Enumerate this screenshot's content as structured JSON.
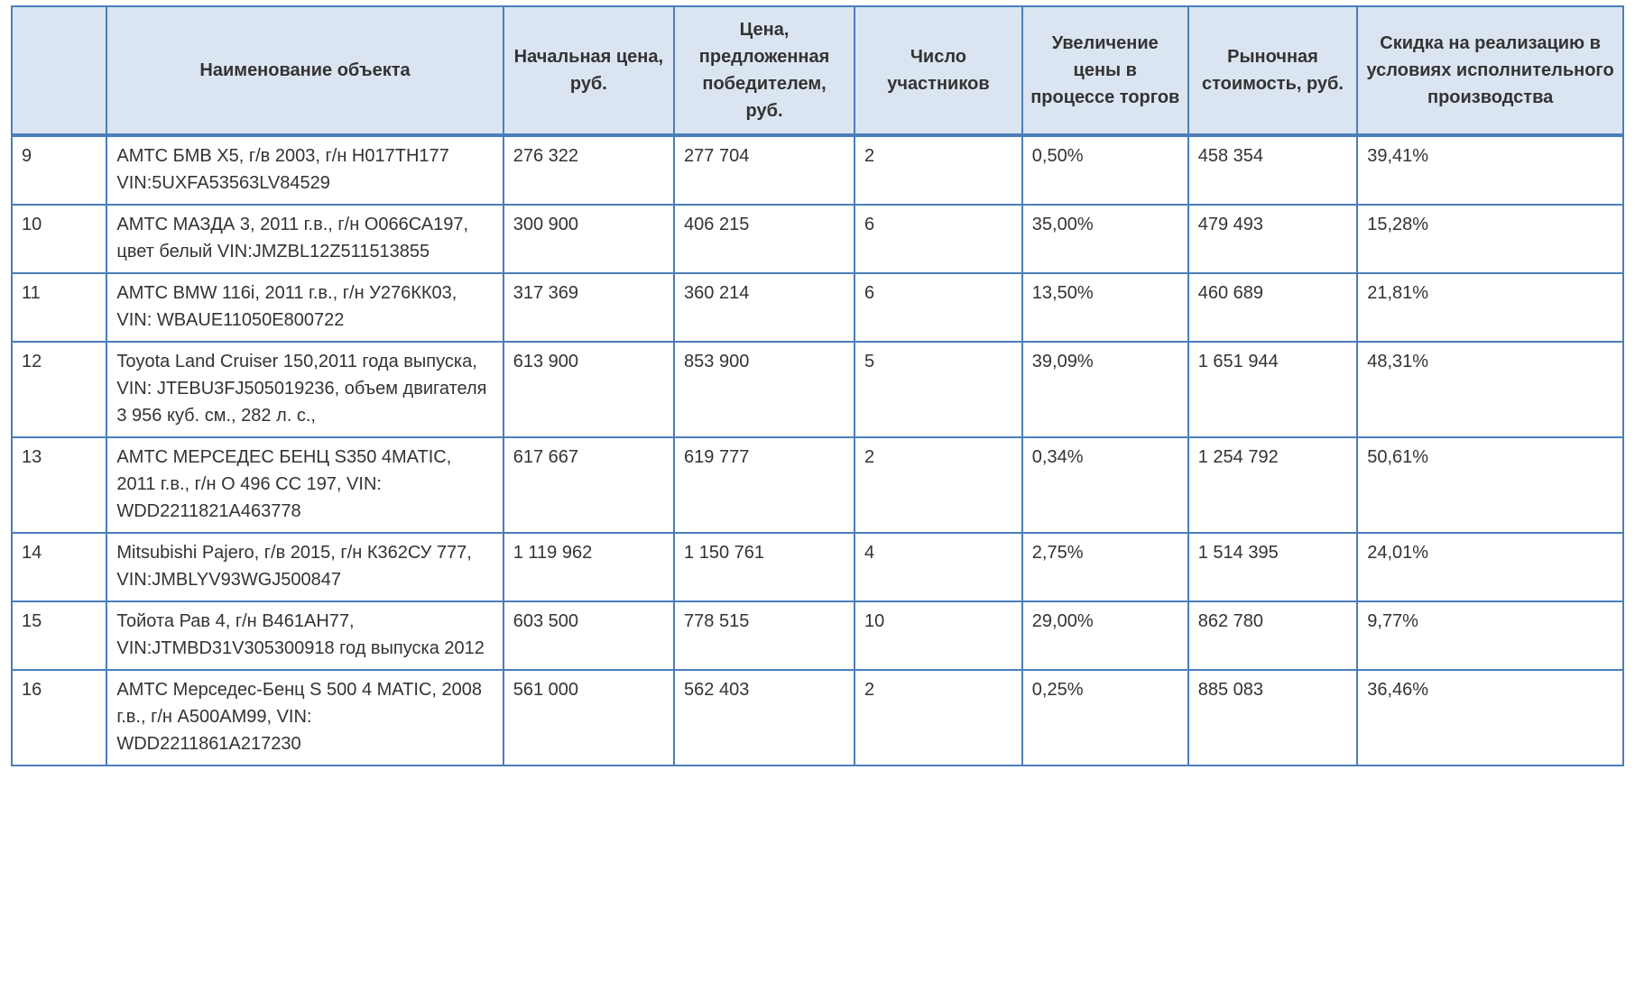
{
  "table": {
    "border_color": "#4a7ebb",
    "header_bg": "#dbe5f1",
    "text_color": "#333333",
    "font_family": "Segoe UI, Verdana, Arial, sans-serif",
    "font_size_pt": 15,
    "columns": [
      {
        "key": "idx",
        "label": "",
        "width_pct": 5.9,
        "align": "left"
      },
      {
        "key": "name",
        "label": "Наименование объекта",
        "width_pct": 24.6,
        "align": "left"
      },
      {
        "key": "start_price",
        "label": "Начальная цена, руб.",
        "width_pct": 10.6,
        "align": "left"
      },
      {
        "key": "winner_price",
        "label": "Цена, предложенная победителем, руб.",
        "width_pct": 11.2,
        "align": "left"
      },
      {
        "key": "participants",
        "label": "Число участников",
        "width_pct": 10.4,
        "align": "left"
      },
      {
        "key": "increase",
        "label": "Увеличение цены в процессе торгов",
        "width_pct": 10.3,
        "align": "left"
      },
      {
        "key": "market_value",
        "label": "Рыночная стоимость, руб.",
        "width_pct": 10.5,
        "align": "left"
      },
      {
        "key": "discount",
        "label": "Скидка на реализацию в условиях исполнительного производства",
        "width_pct": 16.5,
        "align": "left"
      }
    ],
    "rows": [
      {
        "idx": "9",
        "name": "АМТС БМВ Х5, г/в 2003, г/н Н017ТН177  VIN:5UXFA53563LV84529",
        "start_price": "276 322",
        "winner_price": "277 704",
        "participants": "2",
        "increase": "0,50%",
        "market_value": "458 354",
        "discount": "39,41%"
      },
      {
        "idx": "10",
        "name": "АМТС МАЗДА 3, 2011 г.в., г/н О066СА197,  цвет белый VIN:JMZBL12Z511513855",
        "start_price": "300 900",
        "winner_price": "406 215",
        "participants": "6",
        "increase": "35,00%",
        "market_value": "479 493",
        "discount": "15,28%"
      },
      {
        "idx": "11",
        "name": "АМТС BMW 116i, 2011 г.в., г/н У276КК03,  VIN: WBAUE11050E800722",
        "start_price": "317 369",
        "winner_price": "360 214",
        "participants": "6",
        "increase": "13,50%",
        "market_value": "460 689",
        "discount": "21,81%"
      },
      {
        "idx": "12",
        "name": " Toyota Land Cruiser 150,2011 года выпуска,  VIN: JTEBU3FJ505019236, объем двигателя 3 956 куб. см., 282 л. с.,",
        "start_price": "613 900",
        "winner_price": "853 900",
        "participants": "5",
        "increase": "39,09%",
        "market_value": "1 651 944",
        "discount": "48,31%"
      },
      {
        "idx": "13",
        "name": "АМТС МЕРСЕДЕС БЕНЦ S350 4MATIC, 2011 г.в., г/н О 496 СС 197, VIN: WDD2211821A463778",
        "start_price": "617 667",
        "winner_price": "619 777",
        "participants": "2",
        "increase": "0,34%",
        "market_value": "1 254 792",
        "discount": "50,61%"
      },
      {
        "idx": "14",
        "name": "Mitsubishi Pajero, г/в 2015, г/н К362СУ 777, VIN:JMBLYV93WGJ500847",
        "start_price": "1 119 962",
        "winner_price": "1 150 761",
        "participants": "4",
        "increase": "2,75%",
        "market_value": "1 514 395",
        "discount": "24,01%"
      },
      {
        "idx": "15",
        "name": "Тойота Рав 4, г/н В461АН77, VIN:JTMBD31V305300918  год выпуска 2012",
        "start_price": "603 500",
        "winner_price": "778 515",
        "participants": "10",
        "increase": "29,00%",
        "market_value": "862 780",
        "discount": "9,77%"
      },
      {
        "idx": "16",
        "name": "АМТС Мерседес-Бенц S 500 4 MATIC, 2008 г.в., г/н А500АМ99, VIN: WDD2211861A217230",
        "start_price": "561 000",
        "winner_price": "562 403",
        "participants": "2",
        "increase": "0,25%",
        "market_value": "885 083",
        "discount": "36,46%"
      }
    ]
  }
}
